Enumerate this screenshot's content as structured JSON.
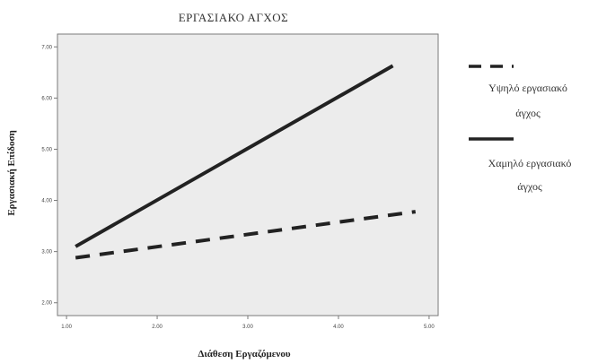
{
  "chart_data": {
    "type": "line",
    "title": "ΕΡΓΑΣΙΑΚΟ ΑΓΧΟΣ",
    "xlabel": "Διάθεση Εργαζόμενου",
    "ylabel": "Εργασιακή Επίδοση",
    "xlim": [
      0.9,
      5.1
    ],
    "ylim": [
      1.75,
      7.25
    ],
    "x_ticks": [
      "1.00",
      "2.00",
      "3.00",
      "4.00",
      "5.00"
    ],
    "y_ticks": [
      "2.00",
      "3.00",
      "4.00",
      "5.00",
      "6.00",
      "7.00"
    ],
    "grid": false,
    "legend_position": "right",
    "series": [
      {
        "name_lines": [
          "Υψηλό εργασιακό",
          "άγχος"
        ],
        "style": "dashed",
        "color": "#222222",
        "x": [
          1.1,
          4.85
        ],
        "y": [
          2.88,
          3.78
        ]
      },
      {
        "name_lines": [
          "Χαμηλό εργασιακό",
          "άγχος"
        ],
        "style": "solid",
        "color": "#222222",
        "x": [
          1.1,
          4.6
        ],
        "y": [
          3.1,
          6.63
        ]
      }
    ]
  }
}
